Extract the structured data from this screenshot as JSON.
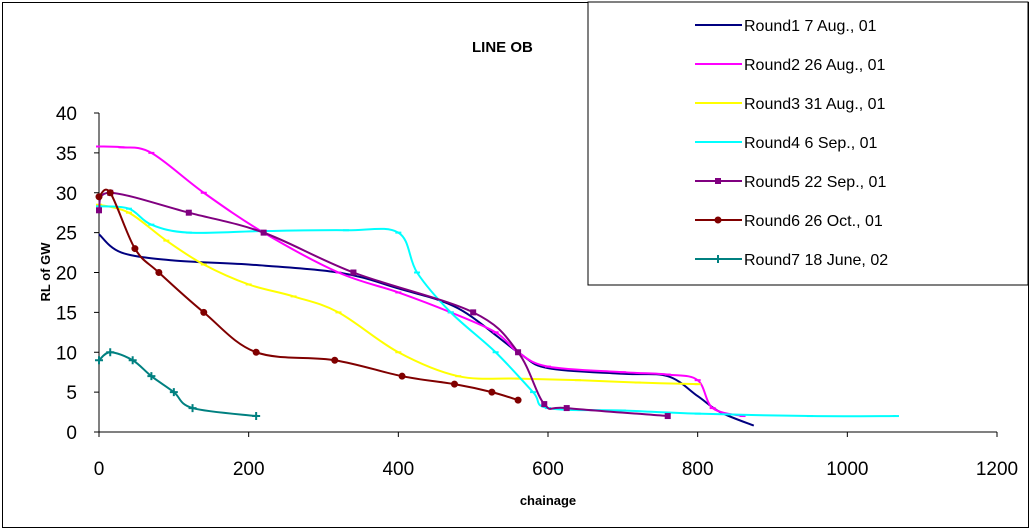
{
  "chart_data": {
    "type": "line",
    "title": "LINE OB",
    "xlabel": "chainage",
    "ylabel": "RL of GW",
    "xlim": [
      0,
      1200
    ],
    "ylim": [
      0,
      40
    ],
    "xticks": [
      0,
      200,
      400,
      600,
      800,
      1000,
      1200
    ],
    "yticks": [
      0,
      5,
      10,
      15,
      20,
      25,
      30,
      35,
      40
    ],
    "grid": false,
    "legend_position": "top-right",
    "series": [
      {
        "name": "Round1 7 Aug., 01",
        "color": "#000080",
        "marker": "none",
        "points": [
          [
            0,
            24.8
          ],
          [
            30,
            22.5
          ],
          [
            100,
            21.5
          ],
          [
            200,
            21
          ],
          [
            320,
            20
          ],
          [
            400,
            18
          ],
          [
            480,
            15.5
          ],
          [
            560,
            10
          ],
          [
            600,
            8
          ],
          [
            700,
            7.3
          ],
          [
            760,
            7
          ],
          [
            800,
            4.5
          ],
          [
            830,
            2.5
          ],
          [
            875,
            0.8
          ]
        ]
      },
      {
        "name": "Round2 26 Aug., 01",
        "color": "#FF00FF",
        "marker": "dash",
        "points": [
          [
            0,
            35.8
          ],
          [
            30,
            35.7
          ],
          [
            70,
            35
          ],
          [
            140,
            30
          ],
          [
            220,
            25
          ],
          [
            320,
            20
          ],
          [
            400,
            17.5
          ],
          [
            470,
            15
          ],
          [
            530,
            12.5
          ],
          [
            560,
            10
          ],
          [
            600,
            8.2
          ],
          [
            700,
            7.5
          ],
          [
            760,
            7.2
          ],
          [
            800,
            6.5
          ],
          [
            820,
            3
          ],
          [
            860,
            2
          ]
        ]
      },
      {
        "name": "Round3 31 Aug., 01",
        "color": "#FFFF00",
        "marker": "dash",
        "points": [
          [
            0,
            28.5
          ],
          [
            40,
            27.5
          ],
          [
            90,
            24
          ],
          [
            140,
            21
          ],
          [
            200,
            18.5
          ],
          [
            260,
            17
          ],
          [
            320,
            15
          ],
          [
            400,
            10
          ],
          [
            480,
            7
          ],
          [
            560,
            6.7
          ],
          [
            640,
            6.5
          ],
          [
            720,
            6.2
          ],
          [
            800,
            6
          ]
        ]
      },
      {
        "name": "Round4 6 Sep., 01",
        "color": "#00FFFF",
        "marker": "dash",
        "points": [
          [
            0,
            28.3
          ],
          [
            40,
            28
          ],
          [
            70,
            26
          ],
          [
            120,
            25
          ],
          [
            220,
            25.2
          ],
          [
            330,
            25.3
          ],
          [
            400,
            25
          ],
          [
            425,
            20
          ],
          [
            470,
            15
          ],
          [
            530,
            10
          ],
          [
            580,
            5
          ],
          [
            600,
            3
          ],
          [
            700,
            2.7
          ],
          [
            800,
            2.3
          ],
          [
            950,
            2
          ],
          [
            1065,
            2
          ]
        ]
      },
      {
        "name": "Round5 22 Sep., 01",
        "color": "#800080",
        "marker": "asterisk",
        "points": [
          [
            0,
            27.8
          ],
          [
            15,
            30
          ],
          [
            120,
            27.5
          ],
          [
            220,
            25
          ],
          [
            340,
            20
          ],
          [
            500,
            15
          ],
          [
            560,
            10
          ],
          [
            595,
            3.5
          ],
          [
            625,
            3
          ],
          [
            760,
            2
          ]
        ]
      },
      {
        "name": "Round6 26 Oct., 01",
        "color": "#800000",
        "marker": "circle",
        "points": [
          [
            0,
            29.5
          ],
          [
            15,
            30
          ],
          [
            48,
            23
          ],
          [
            80,
            20
          ],
          [
            140,
            15
          ],
          [
            210,
            10
          ],
          [
            315,
            9
          ],
          [
            405,
            7
          ],
          [
            475,
            6
          ],
          [
            525,
            5
          ],
          [
            560,
            4
          ]
        ]
      },
      {
        "name": "Round7 18 June, 02",
        "color": "#008080",
        "marker": "plus",
        "points": [
          [
            0,
            9
          ],
          [
            15,
            10
          ],
          [
            45,
            9
          ],
          [
            70,
            7
          ],
          [
            100,
            5
          ],
          [
            125,
            3
          ],
          [
            210,
            2
          ]
        ]
      }
    ]
  }
}
